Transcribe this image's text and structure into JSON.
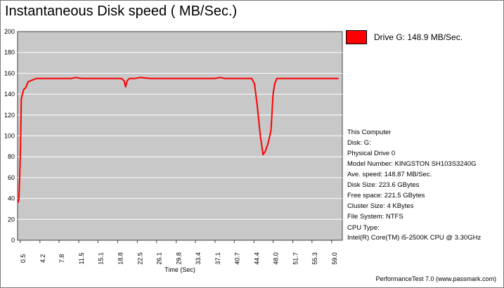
{
  "title": "Instantaneous Disk speed ( MB/Sec.)",
  "legend": {
    "label": "Drive G: 148.9 MB/Sec.",
    "color": "#ff0000"
  },
  "system_info": {
    "computer": "This Computer",
    "disk": "Disk: G:",
    "physical_drive": "Physical Drive 0",
    "model": "Model Number: KINGSTON SH103S3240G",
    "ave_speed": "Ave. speed: 148.87 MB/Sec.",
    "disk_size": "Disk Size: 223.6 GBytes",
    "free_space": "Free space: 221.5 GBytes",
    "cluster_size": "Cluster Size: 4 KBytes",
    "file_system": "File System: NTFS",
    "cpu_type_label": "CPU Type:",
    "cpu_model": "Intel(R) Core(TM) i5-2500K CPU @ 3.30GHz"
  },
  "footer": "PerformanceTest 7.0 (www.passmark.com)",
  "colors": {
    "plot_background": "#c8c8c8",
    "series": "#ff0000",
    "grid": "#ffffff"
  },
  "chart_data": {
    "type": "line",
    "title": "Instantaneous Disk speed ( MB/Sec.)",
    "xlabel": "Time (Sec)",
    "ylabel": "",
    "ylim": [
      0,
      200
    ],
    "xlim": [
      0,
      61
    ],
    "y_ticks": [
      "0",
      "20",
      "40",
      "60",
      "80",
      "100",
      "120",
      "140",
      "160",
      "180",
      "200"
    ],
    "x_ticks": [
      "0.5",
      "4.2",
      "7.8",
      "11.5",
      "15.1",
      "18.8",
      "22.5",
      "26.1",
      "29.8",
      "33.4",
      "37.1",
      "40.7",
      "44.4",
      "48.0",
      "51.7",
      "55.3",
      "59.0"
    ],
    "grid": true,
    "legend_position": "top-right",
    "series": [
      {
        "name": "Drive G: 148.9 MB/Sec.",
        "color": "#ff0000",
        "x": [
          0.1,
          0.25,
          0.4,
          0.55,
          0.7,
          0.9,
          1.2,
          1.5,
          2.0,
          2.5,
          3.0,
          3.5,
          4.2,
          6.0,
          8.0,
          10.0,
          11.0,
          12.0,
          14.0,
          16.0,
          18.0,
          19.5,
          20.0,
          20.3,
          20.6,
          21.0,
          22.0,
          23.0,
          25.0,
          27.0,
          29.0,
          31.0,
          33.0,
          35.0,
          37.0,
          38.0,
          39.0,
          41.0,
          43.0,
          44.0,
          44.5,
          45.0,
          45.6,
          46.1,
          46.5,
          47.0,
          47.6,
          48.0,
          48.3,
          48.7,
          49.3,
          49.7,
          51.0,
          53.0,
          55.0,
          57.0,
          59.0,
          60.3
        ],
        "y": [
          36,
          40,
          60,
          90,
          135,
          140,
          145,
          146,
          152,
          153,
          154,
          155,
          155,
          155,
          155,
          155,
          156,
          155,
          155,
          155,
          155,
          155,
          153,
          147,
          153,
          155,
          155,
          156,
          155,
          155,
          155,
          155,
          155,
          155,
          155,
          156,
          155,
          155,
          155,
          155,
          150,
          130,
          100,
          82,
          85,
          92,
          105,
          140,
          150,
          155,
          155,
          155,
          155,
          155,
          155,
          155,
          155,
          155
        ]
      }
    ]
  }
}
